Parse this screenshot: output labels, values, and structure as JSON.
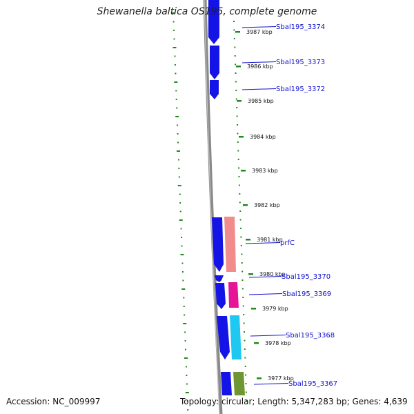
{
  "title": "Shewanella baltica OS195, complete genome",
  "footer": {
    "accession": "Accession: NC_009997",
    "summary": "Topology: circular; Length: 5,347,283 bp; Genes: 4,639"
  },
  "colors": {
    "backbone": "#8a8a8a",
    "tick": "#1e8a1e",
    "gene_label": "#1010d0",
    "cds": "#1414e6",
    "feature_salmon": "#f08c8c",
    "feature_magenta": "#e61496",
    "feature_cyan": "#1ec8f0",
    "feature_olive": "#6e9632"
  },
  "tick_labels": [
    "3987 kbp",
    "3986 kbp",
    "3985 kbp",
    "3984 kbp",
    "3983 kbp",
    "3982 kbp",
    "3981 kbp",
    "3980 kbp",
    "3979 kbp",
    "3978 kbp",
    "3977 kbp"
  ],
  "gene_labels": [
    "Sbal195_3374",
    "Sbal195_3373",
    "Sbal195_3372",
    "prfC",
    "Sbal195_3370",
    "Sbal195_3369",
    "Sbal195_3368",
    "Sbal195_3367"
  ]
}
